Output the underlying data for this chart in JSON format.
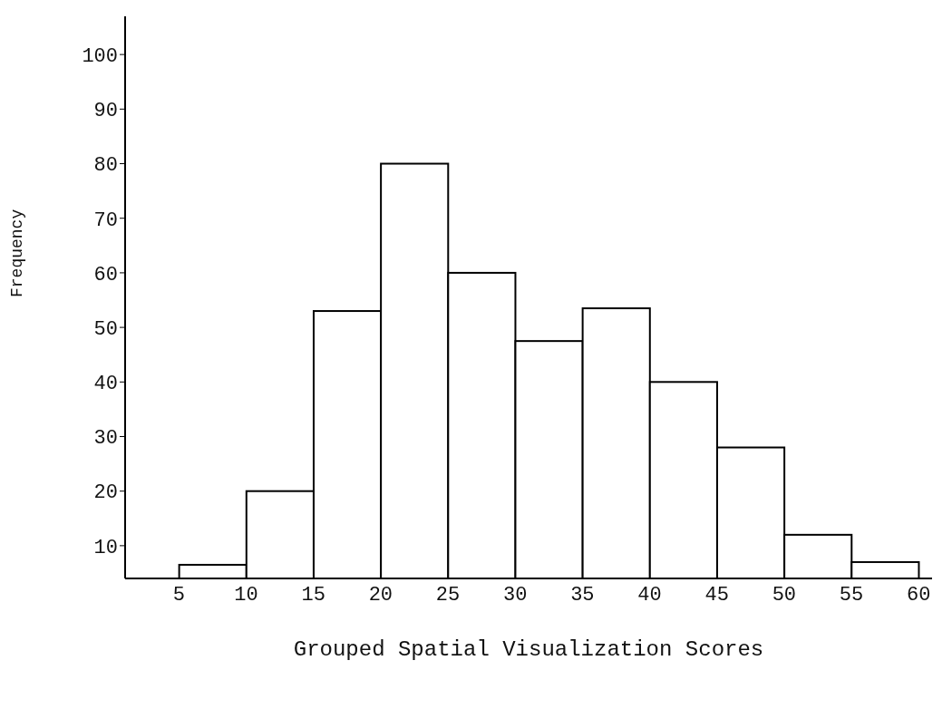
{
  "chart_data": {
    "type": "histogram",
    "xlabel": "Grouped Spatial Visualization Scores",
    "ylabel": "Frequency",
    "bins": [
      5,
      10,
      15,
      20,
      25,
      30,
      35,
      40,
      45,
      50,
      55,
      60
    ],
    "values": [
      6.5,
      20,
      53,
      80,
      60,
      47.5,
      53.5,
      40,
      28,
      12,
      7
    ],
    "color": "#ffffff",
    "xlim": [
      1,
      61
    ],
    "xticks": [
      5,
      10,
      15,
      20,
      25,
      30,
      35,
      40,
      45,
      50,
      55,
      60
    ],
    "ylim": [
      4,
      107
    ],
    "yticks": [
      10,
      20,
      30,
      40,
      50,
      60,
      70,
      80,
      90,
      100
    ],
    "grid": false
  }
}
